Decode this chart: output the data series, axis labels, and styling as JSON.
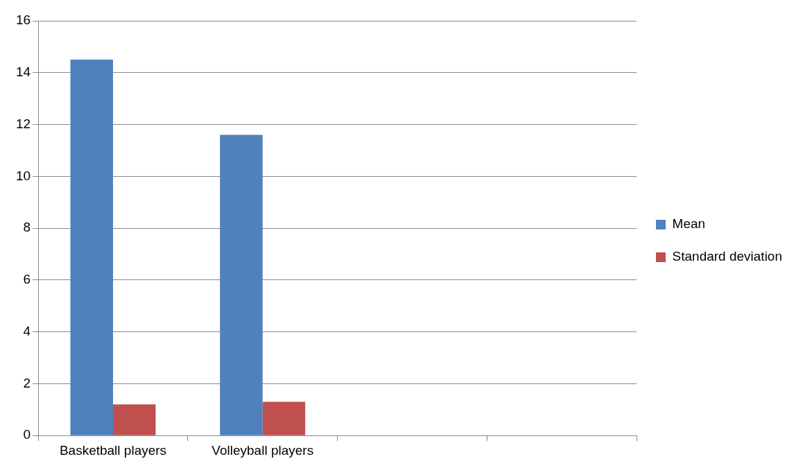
{
  "chart_data": {
    "type": "bar",
    "categories": [
      "Basketball players",
      "Volleyball players",
      null,
      null
    ],
    "series": [
      {
        "name": "Mean",
        "color": "#4f81bd",
        "values": [
          14.5,
          11.6,
          null,
          null
        ]
      },
      {
        "name": "Standard deviation",
        "color": "#c0504d",
        "values": [
          1.2,
          1.3,
          null,
          null
        ]
      }
    ],
    "ylim": [
      0,
      16
    ],
    "yticks": [
      0,
      2,
      4,
      6,
      8,
      10,
      12,
      14,
      16
    ],
    "grid": "y",
    "legend": "right"
  }
}
